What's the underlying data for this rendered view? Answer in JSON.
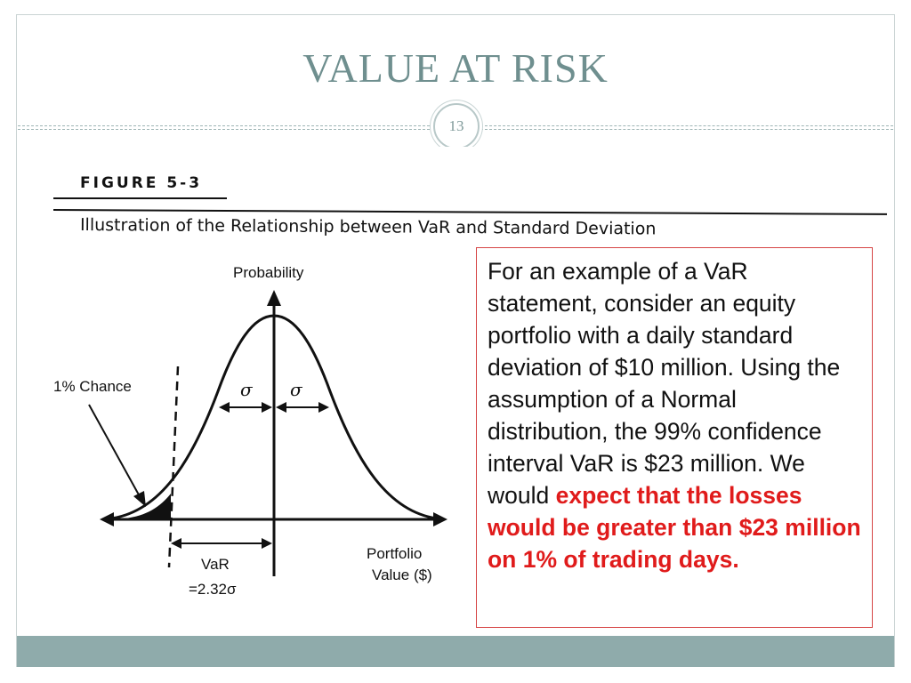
{
  "slide": {
    "title": "VALUE AT RISK",
    "page_number": "13"
  },
  "figure": {
    "label": "FIGURE 5-3",
    "caption": "Illustration of the Relationship between VaR and Standard Deviation",
    "y_axis_label": "Probability",
    "x_axis_label_line1": "Portfolio",
    "x_axis_label_line2": "Value ($)",
    "chance_label": "1% Chance",
    "sigma_left": "σ",
    "sigma_right": "σ",
    "var_label": "VaR",
    "var_value": "=2.32σ"
  },
  "callout": {
    "text_plain": "For an example of a VaR statement, consider an equity portfolio with a daily standard deviation of $10 million. Using the assumption of a Normal distribution, the 99% confidence interval VaR is $23 million. We would ",
    "text_highlight": "expect that the losses would be greater than $23 million on 1% of trading days.",
    "highlight_color": "#e01b1b",
    "border_color": "#d64545"
  },
  "theme": {
    "title_color": "#6f8f8f",
    "footer_color": "#8fabab"
  }
}
